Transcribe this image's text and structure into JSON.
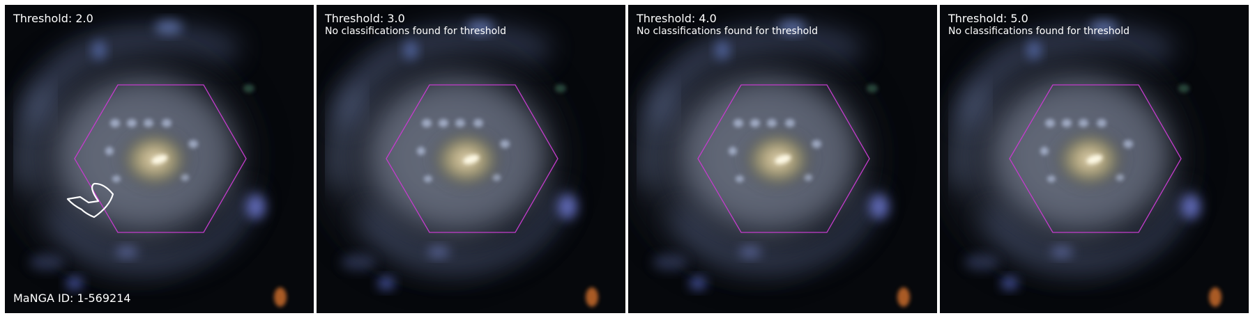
{
  "panels": [
    {
      "title": "Threshold: 2.0",
      "message": ""
    },
    {
      "title": "Threshold: 3.0",
      "message": "No classifications found for threshold"
    },
    {
      "title": "Threshold: 4.0",
      "message": "No classifications found for threshold"
    },
    {
      "title": "Threshold: 5.0",
      "message": "No classifications found for threshold"
    }
  ],
  "manga_id": "MaNGA ID: 1-569214",
  "colors": {
    "hexagon": "#c43ccc",
    "contour": "#ffffff",
    "background": "#050608"
  }
}
